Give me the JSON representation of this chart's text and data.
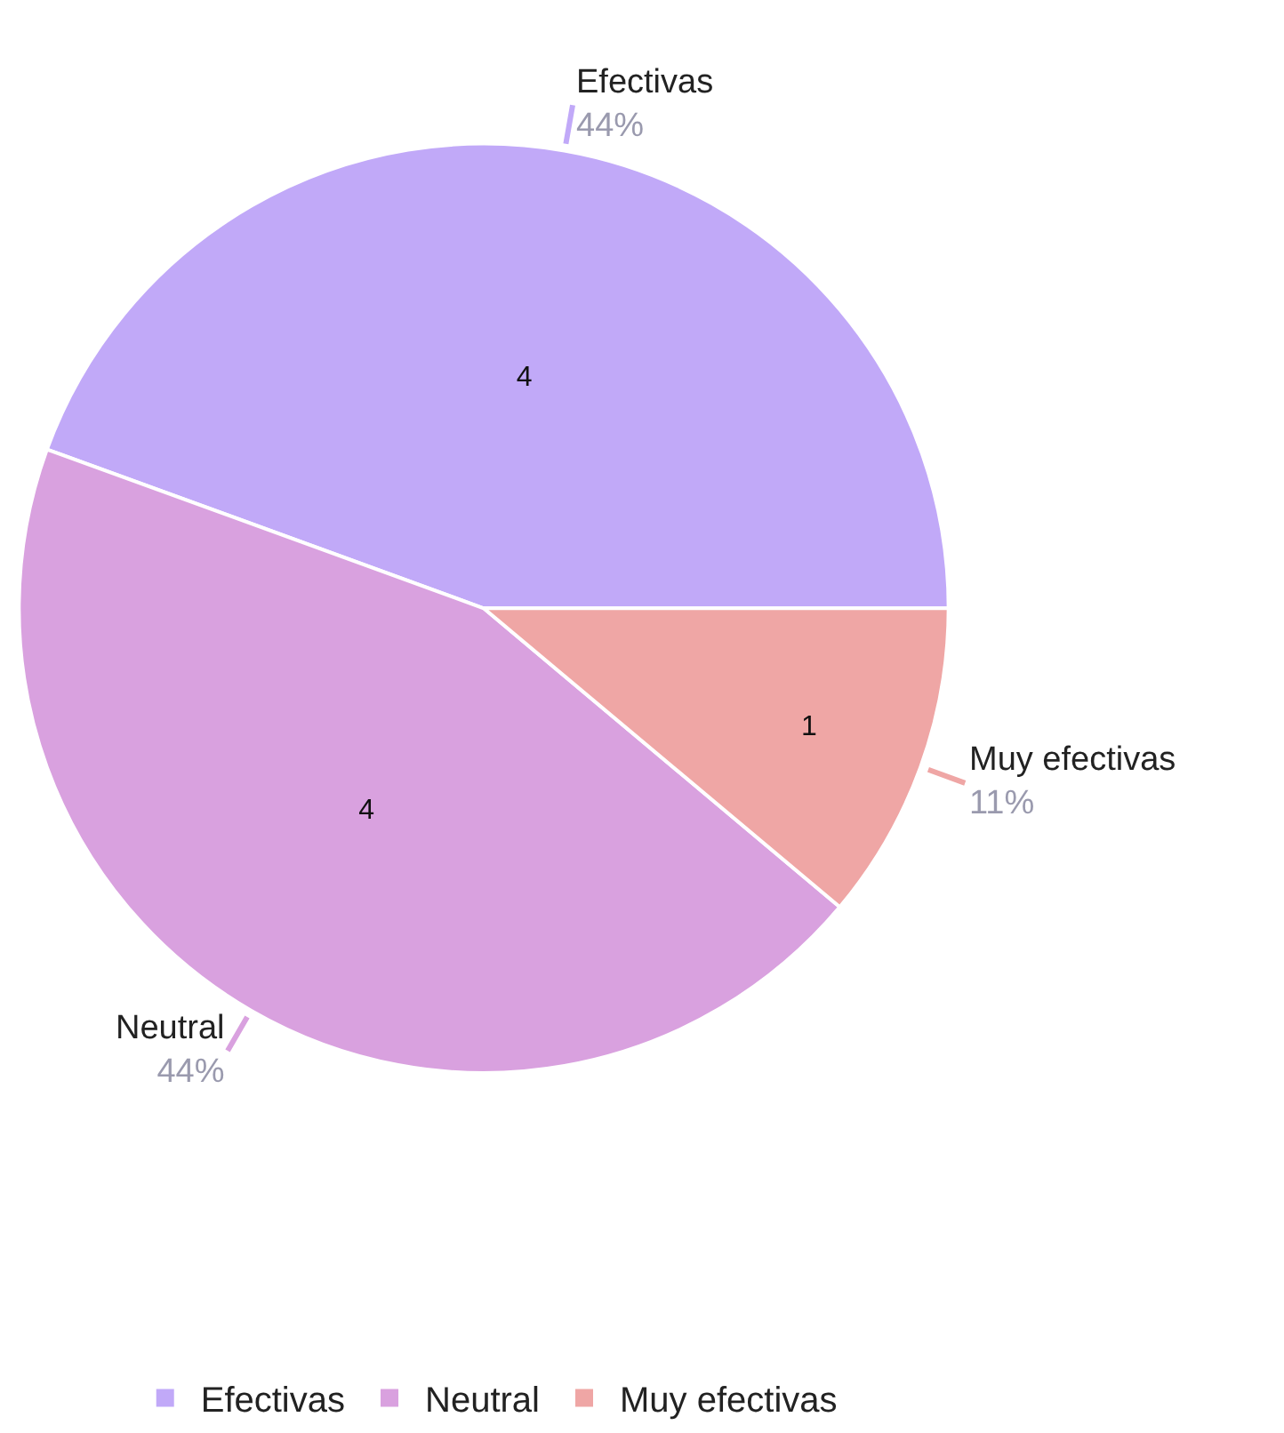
{
  "chart_data": {
    "type": "pie",
    "categories": [
      "Efectivas",
      "Neutral",
      "Muy efectivas"
    ],
    "values": [
      4,
      4,
      1
    ],
    "colors": [
      "#c1a9f8",
      "#d9a1df",
      "#efa6a5"
    ],
    "data_labels": true,
    "annotations": [
      "44%",
      "44%",
      "11%"
    ],
    "legend": "bottom"
  }
}
